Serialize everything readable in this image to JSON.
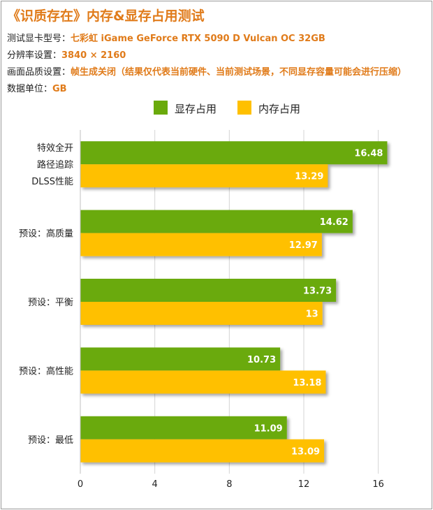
{
  "header": {
    "title": "《识质存在》内存&显存占用测试",
    "rows": [
      {
        "key": "测试显卡型号：",
        "value": "七彩虹 iGame GeForce RTX 5090 D Vulcan OC 32GB"
      },
      {
        "key": "分辨率设置：",
        "value": "3840 × 2160"
      },
      {
        "key": "画面品质设置：",
        "value": "帧生成关闭（结果仅代表当前硬件、当前测试场景，不同显存容量可能会进行压缩）"
      },
      {
        "key": "数据单位：",
        "value": "GB"
      }
    ]
  },
  "colors": {
    "accent": "#e07b1a",
    "series1": "#6aaa0c",
    "series2": "#ffc000"
  },
  "chart_data": {
    "type": "bar",
    "orientation": "horizontal",
    "categories": [
      [
        "特效全开",
        "路径追踪",
        "DLSS性能"
      ],
      [
        "预设：高质量"
      ],
      [
        "预设：平衡"
      ],
      [
        "预设：高性能"
      ],
      [
        "预设：最低"
      ]
    ],
    "series": [
      {
        "name": "显存占用",
        "values": [
          16.48,
          14.62,
          13.73,
          10.73,
          11.09
        ]
      },
      {
        "name": "内存占用",
        "values": [
          13.29,
          12.97,
          13,
          13.18,
          13.09
        ]
      }
    ],
    "value_labels": [
      [
        "16.48",
        "14.62",
        "13.73",
        "10.73",
        "11.09"
      ],
      [
        "13.29",
        "12.97",
        "13",
        "13.18",
        "13.09"
      ]
    ],
    "xlim": [
      0,
      18
    ],
    "xticks": [
      0,
      4,
      8,
      12,
      16
    ],
    "grid": true,
    "legend_position": "top-center"
  }
}
